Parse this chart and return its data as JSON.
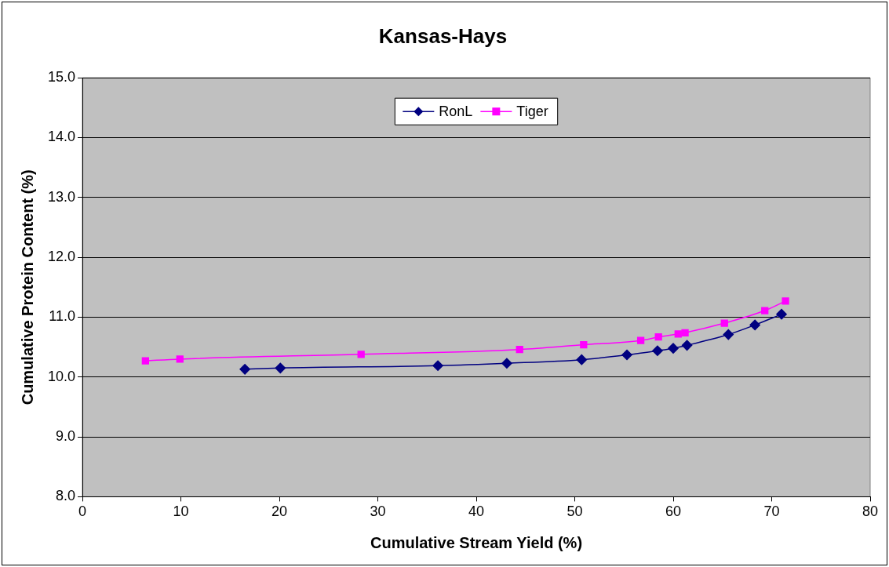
{
  "chart_data": {
    "type": "line",
    "title": "Kansas-Hays",
    "xlabel": "Cumulative Stream Yield (%)",
    "ylabel": "Cumulative Protein Content (%)",
    "xlim": [
      0,
      80
    ],
    "xticks": [
      0,
      10,
      20,
      30,
      40,
      50,
      60,
      70,
      80
    ],
    "ylim": [
      8.0,
      15.0
    ],
    "yticks": [
      {
        "value": 8,
        "label": "8.0"
      },
      {
        "value": 9,
        "label": "9.0"
      },
      {
        "value": 10,
        "label": "10.0"
      },
      {
        "value": 11,
        "label": "11.0"
      },
      {
        "value": 12,
        "label": "12.0"
      },
      {
        "value": 13,
        "label": "13.0"
      },
      {
        "value": 14,
        "label": "14.0"
      },
      {
        "value": 15,
        "label": "15.0"
      }
    ],
    "grid": "y",
    "legend": "top",
    "series": [
      {
        "name": "RonL",
        "color": "#000080",
        "marker": "diamond",
        "x": [
          16.5,
          20.1,
          36.1,
          43.1,
          50.7,
          55.3,
          58.4,
          60.0,
          61.4,
          65.6,
          68.3,
          71.0
        ],
        "values": [
          10.13,
          10.15,
          10.19,
          10.23,
          10.29,
          10.37,
          10.44,
          10.48,
          10.53,
          10.71,
          10.87,
          11.05
        ]
      },
      {
        "name": "Tiger",
        "color": "#ff00ff",
        "marker": "square",
        "x": [
          6.4,
          9.9,
          28.3,
          44.4,
          50.9,
          56.7,
          58.5,
          60.5,
          61.2,
          65.2,
          69.3,
          71.4
        ],
        "values": [
          10.27,
          10.3,
          10.38,
          10.46,
          10.54,
          10.61,
          10.67,
          10.72,
          10.74,
          10.9,
          11.11,
          11.27
        ]
      }
    ]
  }
}
